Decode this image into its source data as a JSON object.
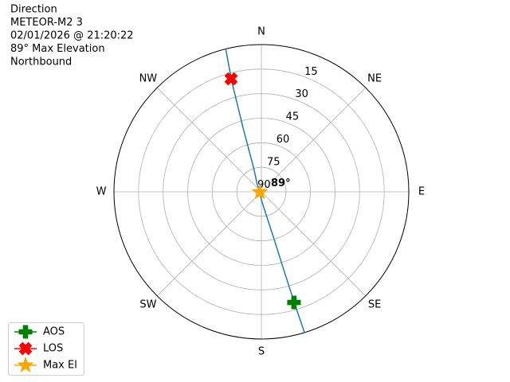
{
  "chart_data": {
    "type": "polar",
    "title": [
      "Direction",
      "METEOR-M2 3",
      "02/01/2026 @ 21:20:22",
      "89° Max Elevation",
      "Northbound"
    ],
    "rlim": [
      90,
      0
    ],
    "rticks": [
      15,
      30,
      45,
      60,
      75,
      90
    ],
    "thetaticks": [
      {
        "value": 0,
        "label": "N"
      },
      {
        "value": 45,
        "label": "NE"
      },
      {
        "value": 90,
        "label": "E"
      },
      {
        "value": 135,
        "label": "SE"
      },
      {
        "value": 180,
        "label": "S"
      },
      {
        "value": 225,
        "label": "SW"
      },
      {
        "value": 270,
        "label": "W"
      },
      {
        "value": 315,
        "label": "NW"
      }
    ],
    "grid": true,
    "track": {
      "color": "#1f77b4",
      "az": [
        163,
        163.5,
        164,
        165,
        168,
        180,
        255,
        330,
        342,
        344,
        345,
        346
      ],
      "el": [
        0,
        20,
        40,
        60,
        75,
        85,
        89,
        85,
        75,
        50,
        20,
        0
      ]
    },
    "markers": [
      {
        "name": "AOS",
        "shape": "plus",
        "color": "#008000",
        "az": 163.6,
        "el": 19.5
      },
      {
        "name": "LOS",
        "shape": "x",
        "color": "#ff0000",
        "az": 345,
        "el": 18.5
      },
      {
        "name": "Max El",
        "shape": "star",
        "color": "#ffa500",
        "az": 255,
        "el": 89
      }
    ],
    "annotation": "89°",
    "legend": "lower left"
  }
}
